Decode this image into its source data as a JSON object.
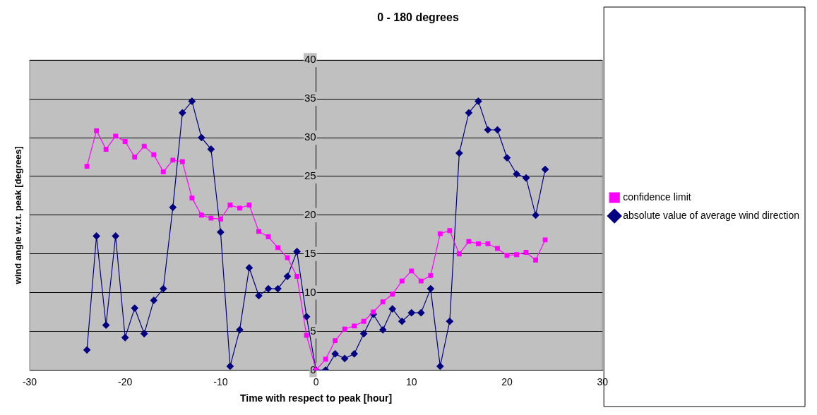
{
  "chart_data": {
    "type": "line",
    "title": "0 - 180 degrees",
    "xlabel": "Time with respect to peak [hour]",
    "ylabel": "wind angle w.r.t. peak [degrees]",
    "x": [
      -24,
      -23,
      -22,
      -21,
      -20,
      -19,
      -18,
      -17,
      -16,
      -15,
      -14,
      -13,
      -12,
      -11,
      -10,
      -9,
      -8,
      -7,
      -6,
      -5,
      -4,
      -3,
      -2,
      -1,
      0,
      1,
      2,
      3,
      4,
      5,
      6,
      7,
      8,
      9,
      10,
      11,
      12,
      13,
      14,
      15,
      16,
      17,
      18,
      19,
      20,
      21,
      22,
      23,
      24
    ],
    "series": [
      {
        "name": "absolute value of average wind direction",
        "color": "#000080",
        "marker": "diamond",
        "values": [
          2.6,
          17.3,
          5.8,
          17.3,
          4.2,
          8,
          4.7,
          9,
          10.5,
          21,
          33.2,
          34.7,
          30,
          28.5,
          17.8,
          0.5,
          5.2,
          13.2,
          9.6,
          10.5,
          10.5,
          12.1,
          15.3,
          6.9,
          0,
          0,
          2.1,
          1.5,
          2.1,
          4.7,
          7.2,
          5.2,
          7.9,
          6.3,
          7.4,
          7.4,
          10.5,
          0.5,
          6.3,
          28,
          33.2,
          34.7,
          31,
          31,
          27.4,
          25.3,
          24.8,
          20,
          25.9
        ]
      },
      {
        "name": "confidence limit",
        "color": "#ff00ff",
        "marker": "square",
        "values": [
          26.3,
          30.9,
          28.5,
          30.2,
          29.5,
          27.5,
          28.9,
          27.8,
          25.6,
          27.1,
          26.9,
          22.2,
          20,
          19.6,
          19.5,
          21.3,
          20.9,
          21.3,
          17.9,
          17.2,
          15.8,
          14.5,
          12.1,
          4.5,
          0,
          1.4,
          3.8,
          5.3,
          5.7,
          6.3,
          7.5,
          8.8,
          9.8,
          11.5,
          12.8,
          11.5,
          12.2,
          17.6,
          18,
          15,
          16.6,
          16.3,
          16.3,
          15.7,
          14.8,
          14.9,
          15.2,
          14.2,
          16.8
        ]
      }
    ],
    "xlim": [
      -30,
      30
    ],
    "xticks": [
      -30,
      -20,
      -10,
      0,
      10,
      20,
      30
    ],
    "ylim": [
      0,
      40
    ],
    "yticks": [
      0,
      5,
      10,
      15,
      20,
      25,
      30,
      35,
      40
    ],
    "grid": "y",
    "legend": "right",
    "line_style": "solid"
  }
}
